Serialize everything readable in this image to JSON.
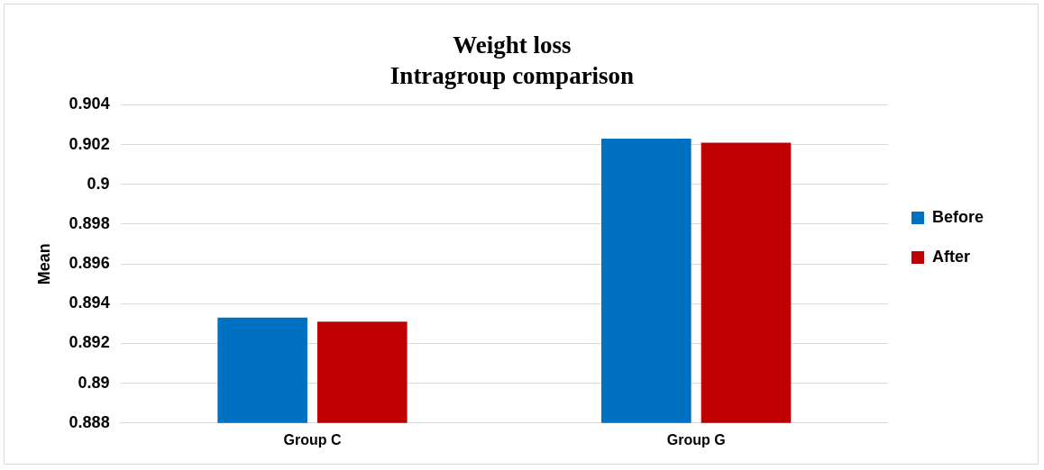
{
  "chart_data": {
    "type": "bar",
    "title": "Weight loss",
    "subtitle": "Intragroup comparison",
    "ylabel": "Mean",
    "categories": [
      "Group C",
      "Group G"
    ],
    "series": [
      {
        "name": "Before",
        "color": "#0070c0",
        "values": [
          0.8933,
          0.9023
        ]
      },
      {
        "name": "After",
        "color": "#c00000",
        "values": [
          0.8931,
          0.9021
        ]
      }
    ],
    "ylim": [
      0.888,
      0.904
    ],
    "yticks": [
      0.888,
      0.89,
      0.892,
      0.894,
      0.896,
      0.898,
      0.9,
      0.902,
      0.904
    ],
    "grid": "y",
    "legend": "right"
  }
}
